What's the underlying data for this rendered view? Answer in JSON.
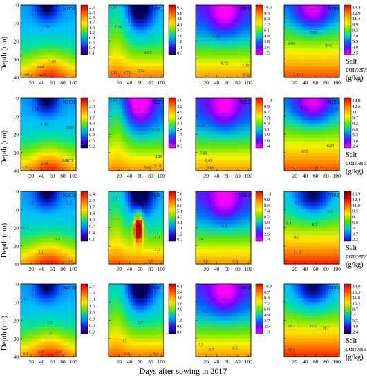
{
  "figure": {
    "x_axis_label": "Days after sowing in 2017",
    "y_axis_label": "Depth (cm)",
    "colorbar_label_lines": [
      "Salt",
      "content",
      "(g/kg)"
    ],
    "x_ticks": [
      20,
      40,
      60,
      80,
      100
    ],
    "y_ticks": [
      0,
      10,
      20,
      30,
      40
    ]
  },
  "chart_data": [
    {
      "type": "heatmap",
      "title": "N1CK",
      "colorbar_ticks": [
        "2.6",
        "2.3",
        "2.0",
        "1.7",
        "1.4",
        "1.2",
        "0.9",
        "0.6",
        "0.4",
        "0.1"
      ],
      "xlim": [
        0,
        105
      ],
      "ylim": [
        40,
        0
      ],
      "contour_labels": [
        {
          "x": 27,
          "y": 3,
          "text": "1.06"
        },
        {
          "x": 48,
          "y": 3,
          "text": "0.753"
        },
        {
          "x": 48,
          "y": 13,
          "text": "1.38"
        },
        {
          "x": 60,
          "y": 32,
          "text": "1.69"
        },
        {
          "x": 37,
          "y": 35,
          "text": "2.00"
        },
        {
          "x": 43,
          "y": 39,
          "text": "2.31"
        },
        {
          "x": 3,
          "y": 39,
          "text": "1.69"
        },
        {
          "x": 50,
          "y": 1,
          "text": "0.91"
        }
      ]
    },
    {
      "type": "heatmap",
      "title": "N1S1",
      "colorbar_ticks": [
        "6.3",
        "5.6",
        "4.8",
        "4.1",
        "3.3",
        "2.6",
        "1.8",
        "1.1",
        "0.3"
      ],
      "xlim": [
        0,
        105
      ],
      "ylim": [
        40,
        0
      ],
      "contour_labels": [
        {
          "x": 5,
          "y": 2,
          "text": "4.03"
        },
        {
          "x": 52,
          "y": 6,
          "text": "2.55"
        },
        {
          "x": 18,
          "y": 13,
          "text": "7.29"
        },
        {
          "x": 70,
          "y": 6,
          "text": "1.86"
        },
        {
          "x": 75,
          "y": 27,
          "text": "4.03"
        },
        {
          "x": 5,
          "y": 38,
          "text": "4.03"
        },
        {
          "x": 35,
          "y": 38,
          "text": "4.78"
        },
        {
          "x": 62,
          "y": 37,
          "text": "5.52"
        }
      ]
    },
    {
      "type": "heatmap",
      "title": "N1S2",
      "colorbar_ticks": [
        "10.6",
        "9.5",
        "8.3",
        "7.2",
        "6.1",
        "4.9",
        "3.8",
        "2.6",
        "1.5"
      ],
      "xlim": [
        0,
        105
      ],
      "ylim": [
        40,
        0
      ],
      "contour_labels": [
        {
          "x": 40,
          "y": 18,
          "text": "6.05"
        },
        {
          "x": 55,
          "y": 33,
          "text": "8.32"
        },
        {
          "x": 95,
          "y": 34,
          "text": "7.19"
        },
        {
          "x": 100,
          "y": 40,
          "text": "8.32"
        }
      ]
    },
    {
      "type": "heatmap",
      "title": "N1S3",
      "colorbar_ticks": [
        "14.4",
        "12.9",
        "11.4",
        "9.9",
        "8.5",
        "7.0",
        "5.5",
        "4.0",
        "2.5"
      ],
      "xlim": [
        0,
        105
      ],
      "ylim": [
        40,
        0
      ],
      "contour_labels": [
        {
          "x": 55,
          "y": 3,
          "text": "5.41"
        },
        {
          "x": 14,
          "y": 22,
          "text": "9.94"
        },
        {
          "x": 85,
          "y": 23,
          "text": "8.45"
        },
        {
          "x": 55,
          "y": 16,
          "text": "7.89"
        },
        {
          "x": 30,
          "y": 40,
          "text": "11.1"
        }
      ]
    },
    {
      "type": "heatmap",
      "title": "N2CK",
      "colorbar_ticks": [
        "2.7",
        "2.3",
        "2.0",
        "1.7",
        "1.4",
        "1.1",
        "0.8",
        "0.5",
        "0.2"
      ],
      "xlim": [
        0,
        105
      ],
      "ylim": [
        40,
        0
      ],
      "contour_labels": [
        {
          "x": 28,
          "y": 7,
          "text": "1.08"
        },
        {
          "x": 37,
          "y": 7,
          "text": "0.78"
        },
        {
          "x": 45,
          "y": 15,
          "text": "1.40"
        },
        {
          "x": 93,
          "y": 17,
          "text": "1.09"
        },
        {
          "x": 45,
          "y": 37,
          "text": "2.34"
        },
        {
          "x": 85,
          "y": 35,
          "text": "2.03"
        },
        {
          "x": 93,
          "y": 35,
          "text": "1.71"
        },
        {
          "x": 4,
          "y": 39,
          "text": "1.71"
        },
        {
          "x": 65,
          "y": 0,
          "text": "0.46"
        }
      ]
    },
    {
      "type": "heatmap",
      "title": "N2S1",
      "colorbar_ticks": [
        "5.9",
        "5.2",
        "4.5",
        "3.8",
        "3.1",
        "2.4",
        "1.7",
        "1.0",
        "0.3"
      ],
      "xlim": [
        0,
        105
      ],
      "ylim": [
        40,
        0
      ],
      "contour_labels": [
        {
          "x": 5,
          "y": 1,
          "text": "3.79"
        },
        {
          "x": 55,
          "y": 7,
          "text": "2.39"
        },
        {
          "x": 90,
          "y": 18,
          "text": "3.09"
        },
        {
          "x": 95,
          "y": 33,
          "text": "4.49"
        },
        {
          "x": 93,
          "y": 38,
          "text": "5.18"
        },
        {
          "x": 75,
          "y": 39,
          "text": "5.85"
        }
      ]
    },
    {
      "type": "heatmap",
      "title": "N2S2",
      "colorbar_ticks": [
        "11.3",
        "9.9",
        "8.7",
        "7.5",
        "6.3",
        "5.1",
        "3.9",
        "2.6",
        "1.4"
      ],
      "xlim": [
        0,
        105
      ],
      "ylim": [
        40,
        0
      ],
      "contour_labels": [
        {
          "x": 20,
          "y": 5,
          "text": "5.1"
        },
        {
          "x": 10,
          "y": 16,
          "text": "6.28"
        },
        {
          "x": 15,
          "y": 31,
          "text": "7.48"
        },
        {
          "x": 25,
          "y": 35,
          "text": "8.69"
        },
        {
          "x": 28,
          "y": 39,
          "text": "9.89"
        }
      ]
    },
    {
      "type": "heatmap",
      "title": "N2S3",
      "colorbar_ticks": [
        "14.0",
        "12.6",
        "11.1",
        "9.7",
        "8.2",
        "6.8",
        "5.3",
        "3.8",
        "2.4"
      ],
      "xlim": [
        0,
        105
      ],
      "ylim": [
        40,
        0
      ],
      "contour_labels": [
        {
          "x": 38,
          "y": 6,
          "text": "6.75"
        },
        {
          "x": 98,
          "y": 7,
          "text": "5.30"
        },
        {
          "x": 38,
          "y": 30,
          "text": "9.65"
        },
        {
          "x": 88,
          "y": 27,
          "text": "8.20"
        },
        {
          "x": 65,
          "y": 39,
          "text": "11.1"
        },
        {
          "x": 20,
          "y": 40,
          "text": "11.1"
        }
      ]
    },
    {
      "type": "heatmap",
      "title": "N3CK",
      "colorbar_ticks": [
        "2.4",
        "2.0",
        "1.7",
        "1.4",
        "1.0",
        "0.7",
        "0.4",
        "0.1"
      ],
      "xlim": [
        0,
        105
      ],
      "ylim": [
        40,
        0
      ],
      "contour_labels": [
        {
          "x": 48,
          "y": 1,
          "text": "0.5"
        },
        {
          "x": 38,
          "y": 4,
          "text": "0.9"
        },
        {
          "x": 20,
          "y": 7,
          "text": "1.2"
        },
        {
          "x": 92,
          "y": 7,
          "text": "1.2"
        },
        {
          "x": 4,
          "y": 21,
          "text": "1.5"
        },
        {
          "x": 70,
          "y": 27,
          "text": "1.5"
        },
        {
          "x": 38,
          "y": 34,
          "text": "2.1"
        },
        {
          "x": 95,
          "y": 39,
          "text": "1.8"
        }
      ]
    },
    {
      "type": "heatmap",
      "title": "N3S1",
      "colorbar_ticks": [
        "7.8",
        "6.9",
        "6.0",
        "5.1",
        "4.2",
        "3.1",
        "2.1",
        "1.2",
        "0.3"
      ],
      "xlim": [
        0,
        105
      ],
      "ylim": [
        40,
        0
      ],
      "contour_labels": [
        {
          "x": 12,
          "y": 5,
          "text": "3.1"
        },
        {
          "x": 55,
          "y": 19,
          "text": "6.2"
        },
        {
          "x": 55,
          "y": 26,
          "text": "5.6"
        },
        {
          "x": 92,
          "y": 26,
          "text": "5.0"
        },
        {
          "x": 92,
          "y": 33,
          "text": "4.0"
        },
        {
          "x": 80,
          "y": 39,
          "text": "3.9"
        }
      ]
    },
    {
      "type": "heatmap",
      "title": "N3S2",
      "colorbar_ticks": [
        "11.1",
        "9.8",
        "8.6",
        "7.4",
        "6.2",
        "5.0",
        "3.8",
        "2.6",
        "1.4"
      ],
      "xlim": [
        0,
        105
      ],
      "ylim": [
        40,
        0
      ],
      "contour_labels": [
        {
          "x": 30,
          "y": 5,
          "text": "5.0"
        },
        {
          "x": 55,
          "y": 20,
          "text": "6.2"
        },
        {
          "x": 8,
          "y": 27,
          "text": "7.4"
        },
        {
          "x": 18,
          "y": 39,
          "text": "8.6"
        },
        {
          "x": 75,
          "y": 39,
          "text": "9.8"
        }
      ]
    },
    {
      "type": "heatmap",
      "title": "N3S3",
      "colorbar_ticks": [
        "13.9",
        "12.4",
        "11.0",
        "9.5",
        "8.1",
        "6.6",
        "5.1",
        "3.7",
        "2.2"
      ],
      "xlim": [
        0,
        105
      ],
      "ylim": [
        40,
        0
      ],
      "contour_labels": [
        {
          "x": 25,
          "y": 7,
          "text": "6.6"
        },
        {
          "x": 88,
          "y": 12,
          "text": "6.6"
        },
        {
          "x": 58,
          "y": 19,
          "text": "8.1"
        },
        {
          "x": 24,
          "y": 26,
          "text": "9.5"
        },
        {
          "x": 25,
          "y": 34,
          "text": "11.0"
        },
        {
          "x": 5,
          "y": 18,
          "text": "8.1"
        }
      ]
    },
    {
      "type": "heatmap",
      "title": "N4CK",
      "colorbar_ticks": [
        "2.7",
        "2.3",
        "2.0",
        "1.6",
        "1.3",
        "0.9",
        "0.6",
        "0.2"
      ],
      "xlim": [
        0,
        105
      ],
      "ylim": [
        40,
        0
      ],
      "contour_labels": [
        {
          "x": 50,
          "y": 1,
          "text": "0.8"
        },
        {
          "x": 10,
          "y": 9,
          "text": "1.4"
        },
        {
          "x": 25,
          "y": 7,
          "text": "1.1"
        },
        {
          "x": 55,
          "y": 22,
          "text": "1.7"
        },
        {
          "x": 55,
          "y": 28,
          "text": "1.7"
        },
        {
          "x": 38,
          "y": 38,
          "text": "2.4"
        },
        {
          "x": 72,
          "y": 38,
          "text": "2.0"
        },
        {
          "x": 5,
          "y": 40,
          "text": "2.1"
        }
      ]
    },
    {
      "type": "heatmap",
      "title": "N4S1",
      "colorbar_ticks": [
        "6.1",
        "5.4",
        "4.6",
        "3.8",
        "3.0",
        "2.3",
        "1.5",
        "0.8",
        "0.0"
      ],
      "xlim": [
        0,
        105
      ],
      "ylim": [
        40,
        0
      ],
      "contour_labels": [
        {
          "x": 58,
          "y": 11,
          "text": "3.0"
        },
        {
          "x": 64,
          "y": 12,
          "text": "3.7"
        },
        {
          "x": 60,
          "y": 22,
          "text": "3.7"
        },
        {
          "x": 30,
          "y": 32,
          "text": "4.5"
        },
        {
          "x": 35,
          "y": 40,
          "text": "6.0"
        },
        {
          "x": 90,
          "y": 40,
          "text": "5.3"
        },
        {
          "x": 55,
          "y": 5,
          "text": "2.3"
        }
      ]
    },
    {
      "type": "heatmap",
      "title": "N4S2",
      "colorbar_ticks": [
        "10.9",
        "9.7",
        "8.4",
        "7.2",
        "6.0",
        "4.9",
        "3.7",
        "2.5",
        "1.3"
      ],
      "xlim": [
        0,
        105
      ],
      "ylim": [
        40,
        0
      ],
      "contour_labels": [
        {
          "x": 55,
          "y": 9,
          "text": "6.1"
        },
        {
          "x": 18,
          "y": 16,
          "text": "6.1"
        },
        {
          "x": 4,
          "y": 34,
          "text": "7.3"
        },
        {
          "x": 30,
          "y": 37,
          "text": "9.7"
        },
        {
          "x": 75,
          "y": 36,
          "text": "8.5"
        }
      ]
    },
    {
      "type": "heatmap",
      "title": "N4S3",
      "colorbar_ticks": [
        "14.9",
        "13.3",
        "11.8",
        "10.2",
        "8.7",
        "7.1",
        "5.5",
        "4.0",
        "2.4"
      ],
      "xlim": [
        0,
        105
      ],
      "ylim": [
        40,
        0
      ],
      "contour_labels": [
        {
          "x": 42,
          "y": 12,
          "text": "7.1"
        },
        {
          "x": 14,
          "y": 24,
          "text": "10.2"
        },
        {
          "x": 55,
          "y": 24,
          "text": "10.2"
        },
        {
          "x": 80,
          "y": 25,
          "text": "8.7"
        },
        {
          "x": 14,
          "y": 37,
          "text": "10.2"
        }
      ]
    }
  ]
}
